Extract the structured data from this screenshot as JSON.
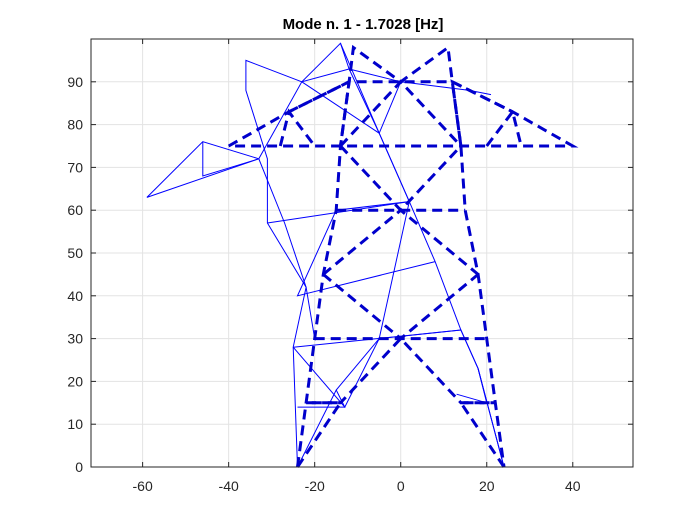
{
  "chart_data": {
    "type": "line",
    "title": "Mode n. 1 - 1.7028 [Hz]",
    "xlabel": "",
    "ylabel": "",
    "xlim": [
      -72,
      54
    ],
    "ylim": [
      0,
      100
    ],
    "xticks": [
      -60,
      -40,
      -20,
      0,
      20,
      40
    ],
    "yticks": [
      0,
      10,
      20,
      30,
      40,
      50,
      60,
      70,
      80,
      90
    ],
    "x_tick_labels": [
      "-60",
      "-40",
      "-20",
      "0",
      "20",
      "40"
    ],
    "y_tick_labels": [
      "0",
      "10",
      "20",
      "30",
      "40",
      "50",
      "60",
      "70",
      "80",
      "90"
    ],
    "grid": true,
    "legend": "none",
    "series": [
      {
        "style": "solid",
        "color": "#0000ff",
        "segments": [
          [
            [
              -24,
              0
            ],
            [
              -25,
              28
            ],
            [
              -22,
              42
            ],
            [
              -31,
              57
            ],
            [
              -31,
              72
            ],
            [
              -36,
              88
            ],
            [
              -36,
              95
            ],
            [
              -23,
              90
            ],
            [
              -14,
              99
            ],
            [
              -12,
              93
            ]
          ],
          [
            [
              -12,
              93
            ],
            [
              -23,
              90
            ],
            [
              -33,
              72
            ],
            [
              -46,
              76
            ],
            [
              -59,
              63
            ],
            [
              -33,
              72
            ],
            [
              -27,
              57
            ],
            [
              -22,
              42
            ],
            [
              -20,
              30
            ]
          ],
          [
            [
              24,
              0
            ],
            [
              18,
              23
            ],
            [
              14,
              32
            ],
            [
              8,
              48
            ],
            [
              2,
              62
            ],
            [
              -5,
              78
            ],
            [
              -12,
              93
            ],
            [
              0,
              90
            ],
            [
              16,
              88
            ],
            [
              21,
              87
            ]
          ],
          [
            [
              -24,
              0
            ],
            [
              -15,
              18
            ],
            [
              -5,
              30
            ],
            [
              14,
              32
            ],
            [
              18,
              23
            ],
            [
              24,
              0
            ]
          ],
          [
            [
              -25,
              28
            ],
            [
              -13,
              14
            ],
            [
              -5,
              30
            ],
            [
              2,
              62
            ],
            [
              -15,
              60
            ],
            [
              -24,
              40
            ],
            [
              8,
              48
            ]
          ],
          [
            [
              -31,
              57
            ],
            [
              2,
              62
            ],
            [
              -5,
              78
            ],
            [
              -14,
              99
            ]
          ],
          [
            [
              -46,
              76
            ],
            [
              -46,
              68
            ],
            [
              -33,
              72
            ]
          ],
          [
            [
              -23,
              90
            ],
            [
              -5,
              78
            ],
            [
              0,
              90
            ]
          ],
          [
            [
              -24,
              14
            ],
            [
              -13,
              14
            ],
            [
              -15,
              18
            ]
          ],
          [
            [
              13,
              17
            ],
            [
              20,
              15
            ],
            [
              18,
              23
            ]
          ],
          [
            [
              -25,
              28
            ],
            [
              14,
              32
            ]
          ]
        ]
      },
      {
        "style": "dashed",
        "color": "#0000cc",
        "segments": [
          [
            [
              -24,
              0
            ],
            [
              -22,
              15
            ],
            [
              -20,
              30
            ],
            [
              -18,
              45
            ],
            [
              -15,
              60
            ],
            [
              -14,
              75
            ],
            [
              -12,
              90
            ],
            [
              -11,
              98
            ],
            [
              0,
              90
            ],
            [
              11,
              98
            ],
            [
              12,
              90
            ],
            [
              14,
              75
            ],
            [
              15,
              60
            ],
            [
              18,
              45
            ],
            [
              20,
              30
            ],
            [
              22,
              15
            ],
            [
              24,
              0
            ]
          ],
          [
            [
              -40,
              75
            ],
            [
              -26,
              83
            ],
            [
              -12,
              90
            ],
            [
              0,
              90
            ],
            [
              12,
              90
            ],
            [
              26,
              83
            ],
            [
              40,
              75
            ],
            [
              -40,
              75
            ]
          ],
          [
            [
              -28,
              75
            ],
            [
              -26,
              83
            ],
            [
              -20,
              75
            ]
          ],
          [
            [
              20,
              75
            ],
            [
              26,
              83
            ],
            [
              28,
              75
            ]
          ],
          [
            [
              -24,
              0
            ],
            [
              -14,
              15
            ],
            [
              -22,
              15
            ]
          ],
          [
            [
              24,
              0
            ],
            [
              14,
              15
            ],
            [
              22,
              15
            ]
          ],
          [
            [
              -22,
              15
            ],
            [
              -14,
              15
            ],
            [
              0,
              30
            ],
            [
              14,
              15
            ],
            [
              22,
              15
            ]
          ],
          [
            [
              -20,
              30
            ],
            [
              0,
              30
            ],
            [
              20,
              30
            ]
          ],
          [
            [
              -18,
              45
            ],
            [
              0,
              30
            ],
            [
              18,
              45
            ]
          ],
          [
            [
              -18,
              45
            ],
            [
              0,
              60
            ],
            [
              18,
              45
            ]
          ],
          [
            [
              -15,
              60
            ],
            [
              0,
              60
            ],
            [
              15,
              60
            ]
          ],
          [
            [
              -14,
              75
            ],
            [
              0,
              60
            ],
            [
              14,
              75
            ]
          ],
          [
            [
              -14,
              75
            ],
            [
              0,
              90
            ],
            [
              14,
              75
            ]
          ],
          [
            [
              -26,
              83
            ],
            [
              -12,
              90
            ],
            [
              -14,
              75
            ]
          ],
          [
            [
              14,
              75
            ],
            [
              12,
              90
            ],
            [
              26,
              83
            ]
          ]
        ]
      }
    ]
  }
}
